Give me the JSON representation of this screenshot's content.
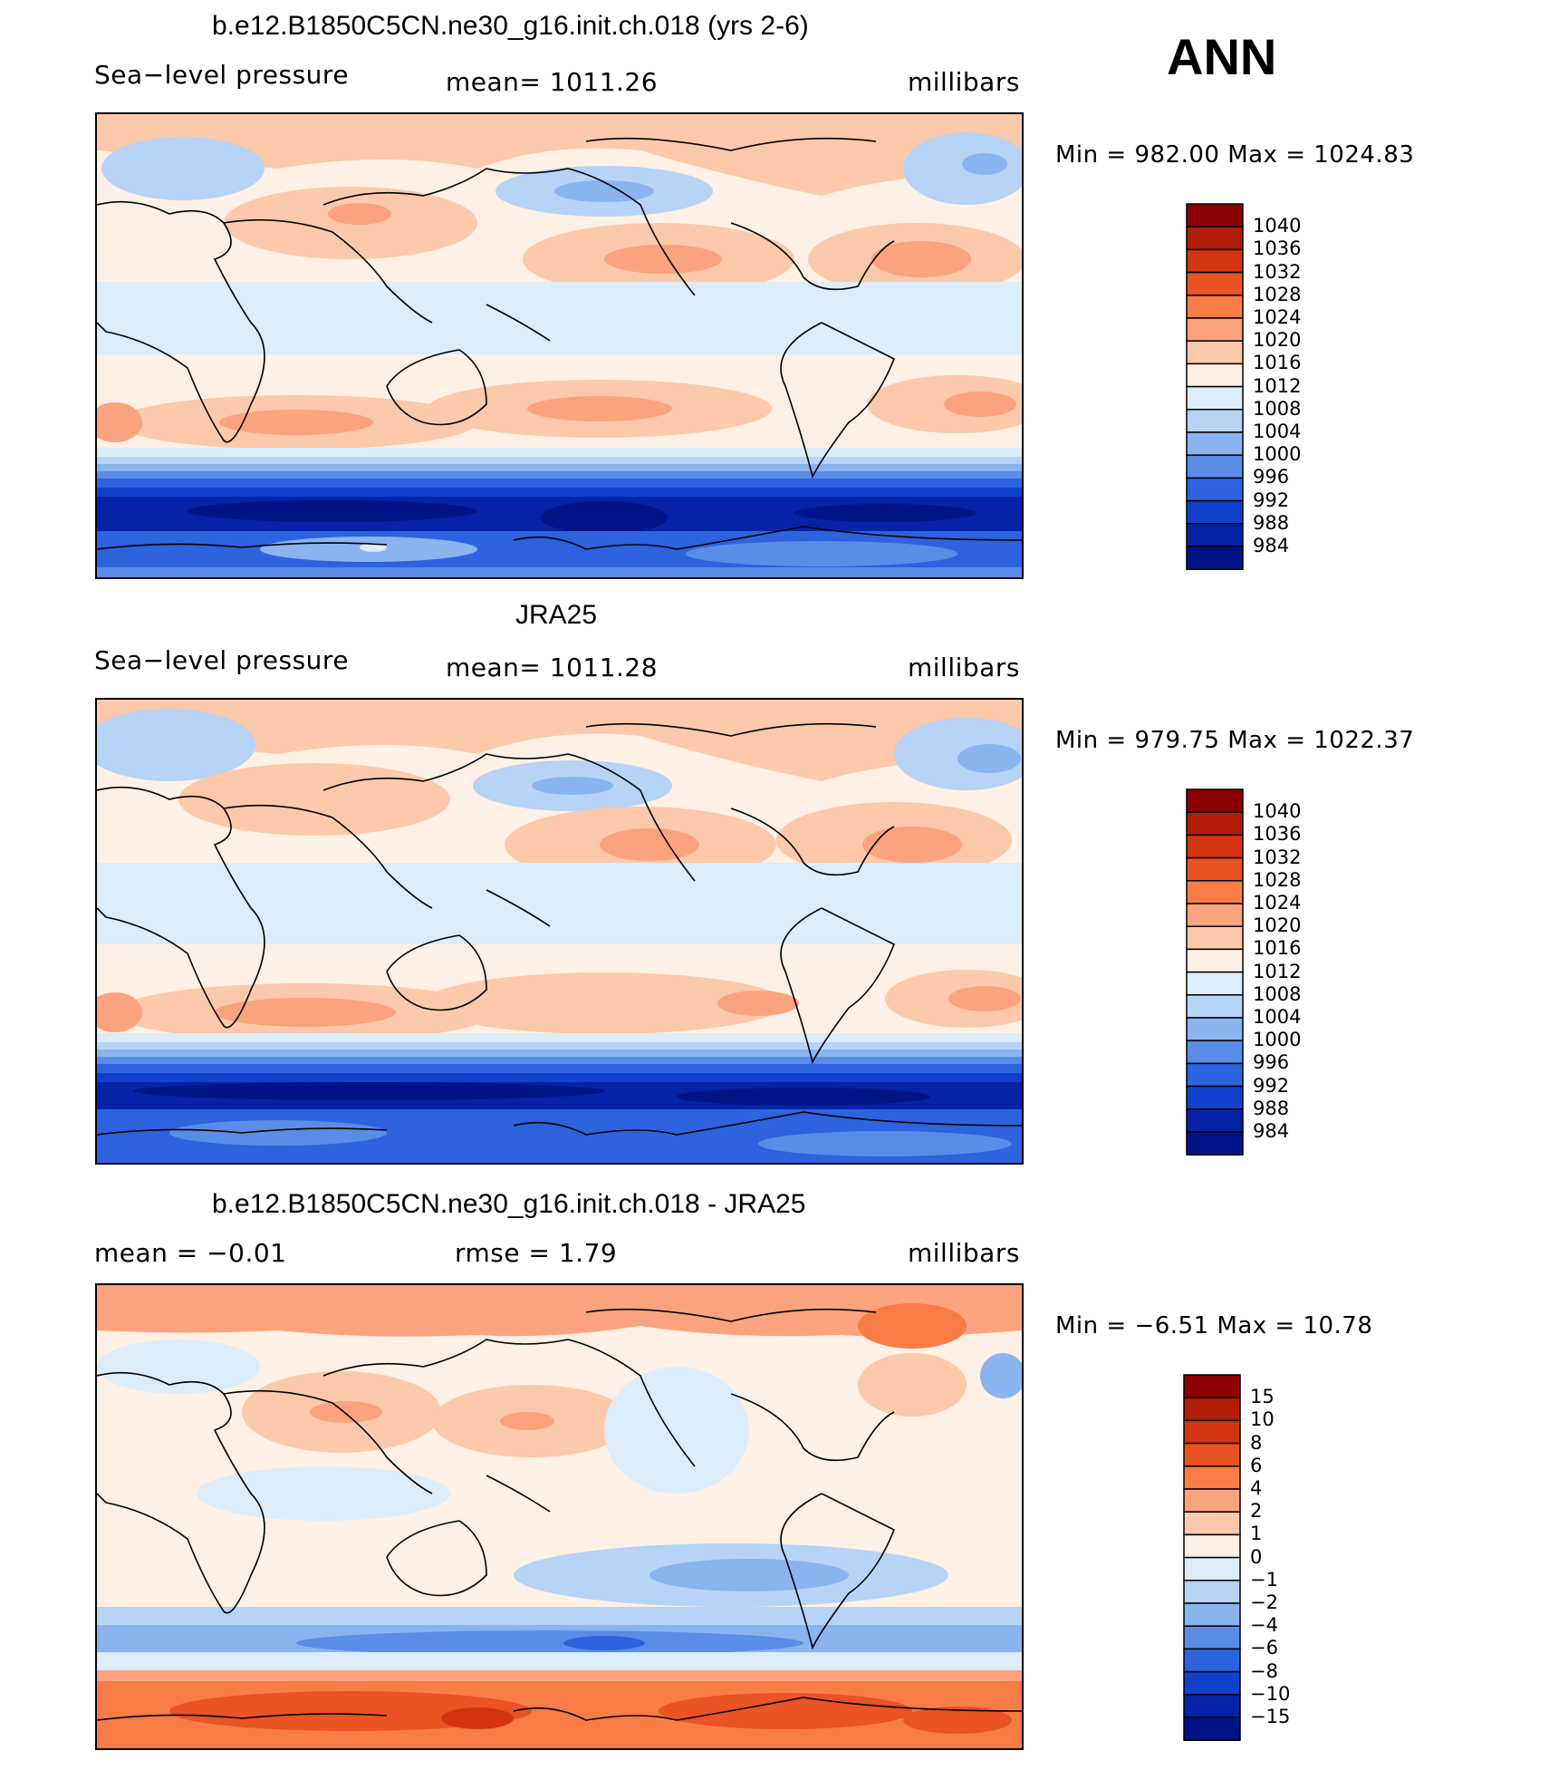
{
  "season": "ANN",
  "panels": [
    {
      "title": "b.e12.B1850C5CN.ne30_g16.init.ch.018 (yrs 2-6)",
      "left_label": "Sea−level pressure",
      "center_label": "mean=  1011.26",
      "units": "millibars",
      "minmax": "Min  =  982.00  Max  =  1024.83",
      "colorbar_labels": [
        "1040",
        "1036",
        "1032",
        "1028",
        "1024",
        "1020",
        "1016",
        "1012",
        "1008",
        "1004",
        "1000",
        "996",
        "992",
        "988",
        "984"
      ],
      "colorbar_colors": [
        "#8b0000",
        "#b11d06",
        "#d33511",
        "#ea5322",
        "#f97c47",
        "#fba37f",
        "#fcc9ab",
        "#fef0e4",
        "#dbecfa",
        "#b7d3f6",
        "#8ab4f0",
        "#5a8de8",
        "#2d63df",
        "#1040cc",
        "#0423a6",
        "#001488"
      ]
    },
    {
      "title": "JRA25",
      "left_label": "Sea−level pressure",
      "center_label": "mean=  1011.28",
      "units": "millibars",
      "minmax": "Min  =  979.75  Max  =  1022.37",
      "colorbar_labels": [
        "1040",
        "1036",
        "1032",
        "1028",
        "1024",
        "1020",
        "1016",
        "1012",
        "1008",
        "1004",
        "1000",
        "996",
        "992",
        "988",
        "984"
      ],
      "colorbar_colors": [
        "#8b0000",
        "#b11d06",
        "#d33511",
        "#ea5322",
        "#f97c47",
        "#fba37f",
        "#fcc9ab",
        "#fef0e4",
        "#dbecfa",
        "#b7d3f6",
        "#8ab4f0",
        "#5a8de8",
        "#2d63df",
        "#1040cc",
        "#0423a6",
        "#001488"
      ]
    },
    {
      "title": "b.e12.B1850C5CN.ne30_g16.init.ch.018 - JRA25",
      "left_label": "mean  =    −0.01",
      "center_label": "rmse  =     1.79",
      "units": "millibars",
      "minmax": "Min  =    −6.51  Max  =    10.78",
      "colorbar_labels": [
        "15",
        "10",
        "8",
        "6",
        "4",
        "2",
        "1",
        "0",
        "−1",
        "−2",
        "−4",
        "−6",
        "−8",
        "−10",
        "−15"
      ],
      "colorbar_colors": [
        "#8b0000",
        "#b11d06",
        "#d33511",
        "#ea5322",
        "#f97c47",
        "#fba37f",
        "#fcc9ab",
        "#fef0e4",
        "#dbecfa",
        "#b7d3f6",
        "#8ab4f0",
        "#5a8de8",
        "#2d63df",
        "#1040cc",
        "#0423a6",
        "#001488"
      ]
    }
  ]
}
